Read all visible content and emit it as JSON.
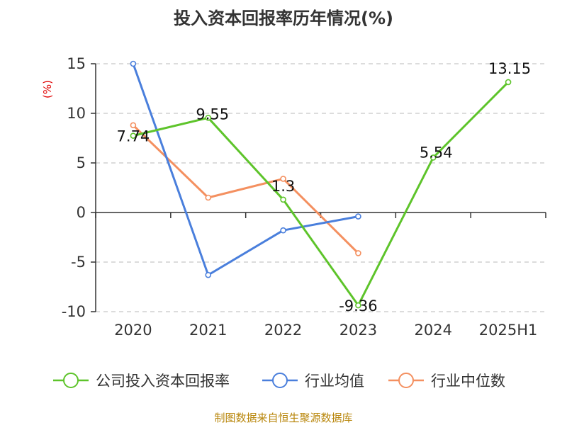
{
  "chart_data": {
    "type": "line",
    "title": "投入资本回报率历年情况(%)",
    "unit": "(%)",
    "categories": [
      "2020",
      "2021",
      "2022",
      "2023",
      "2024",
      "2025H1"
    ],
    "ylim": [
      -10,
      15
    ],
    "yticks": [
      "15",
      "10",
      "5",
      "0",
      "-5",
      "-10"
    ],
    "grid": true,
    "legend_position": "bottom",
    "series": [
      {
        "name": "公司投入资本回报率",
        "color": "#5ec42b",
        "values": [
          7.74,
          9.55,
          1.3,
          -9.36,
          5.54,
          13.15
        ],
        "labels": [
          "7.74",
          "9.55",
          "1.3",
          "-9.36",
          "5.54",
          "13.15"
        ]
      },
      {
        "name": "行业均值",
        "color": "#4a7fdc",
        "values": [
          15.0,
          -6.3,
          -1.8,
          -0.4,
          null,
          null
        ]
      },
      {
        "name": "行业中位数",
        "color": "#f49060",
        "values": [
          8.8,
          1.5,
          3.4,
          -4.1,
          null,
          null
        ]
      }
    ]
  },
  "footer": "制图数据来自恒生聚源数据库"
}
